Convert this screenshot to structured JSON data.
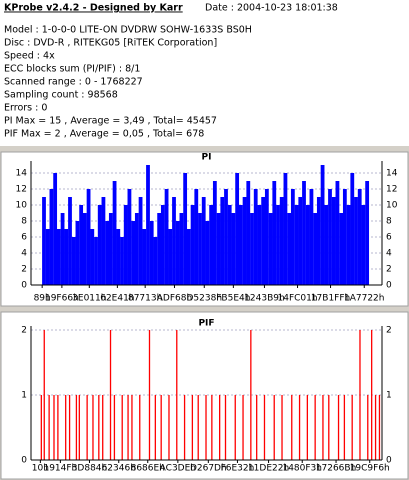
{
  "header": {
    "title": "KProbe v2.4.2 - Designed by Karr",
    "date": "Date : 2004-10-23 18:01:38",
    "lines": [
      "Model : 1-0-0-0 LITE-ON DVDRW SOHW-1633S BS0H",
      "Disc : DVD-R , RITEKG05 [RiTEK Corporation]",
      "Speed : 4x",
      "ECC blocks sum (PI/PIF) : 8/1",
      "Scanned range : 0 - 1768227",
      "Sampling count : 98568",
      "Errors : 0",
      "PI Max = 15 , Average = 3,49 , Total= 45457",
      "PIF Max = 2 , Average = 0,05 , Total= 678"
    ]
  },
  "chart_data": [
    {
      "type": "bar",
      "title": "PI",
      "color": "#0000ff",
      "xlim": [
        -60000,
        1830000
      ],
      "ylim": [
        0,
        15
      ],
      "yticks": [
        0,
        2,
        4,
        6,
        8,
        10,
        12,
        14
      ],
      "grid": true,
      "xticks": [
        {
          "value": 137,
          "label": "89h"
        },
        {
          "value": 106342,
          "label": "19F66h"
        },
        {
          "value": 253969,
          "label": "3E011h"
        },
        {
          "value": 405057,
          "label": "62E41h"
        },
        {
          "value": 554771,
          "label": "87713h"
        },
        {
          "value": 712552,
          "label": "ADF68h"
        },
        {
          "value": 873016,
          "label": "D5238h"
        },
        {
          "value": 1029604,
          "label": "FB5E4h"
        },
        {
          "value": 1196985,
          "label": "1243B9h"
        },
        {
          "value": 1375233,
          "label": "14FC01h"
        },
        {
          "value": 1552895,
          "label": "17B1FFh"
        },
        {
          "value": 1734434,
          "label": "1A7722h"
        }
      ],
      "x": [
        10000,
        30000,
        50000,
        70000,
        90000,
        110000,
        130000,
        150000,
        170000,
        190000,
        210000,
        230000,
        250000,
        270000,
        290000,
        310000,
        330000,
        350000,
        370000,
        390000,
        410000,
        430000,
        450000,
        470000,
        490000,
        510000,
        530000,
        550000,
        570000,
        590000,
        610000,
        630000,
        650000,
        670000,
        690000,
        710000,
        730000,
        750000,
        770000,
        790000,
        810000,
        830000,
        850000,
        870000,
        890000,
        910000,
        930000,
        950000,
        970000,
        990000,
        1010000,
        1030000,
        1050000,
        1070000,
        1090000,
        1110000,
        1130000,
        1150000,
        1170000,
        1190000,
        1210000,
        1230000,
        1250000,
        1270000,
        1290000,
        1310000,
        1330000,
        1350000,
        1370000,
        1390000,
        1410000,
        1430000,
        1450000,
        1470000,
        1490000,
        1510000,
        1530000,
        1550000,
        1570000,
        1590000,
        1610000,
        1630000,
        1650000,
        1670000,
        1690000,
        1710000,
        1730000,
        1750000
      ],
      "values": [
        11,
        7,
        12,
        14,
        7,
        9,
        7,
        11,
        6,
        8,
        10,
        9,
        12,
        7,
        6,
        10,
        11,
        8,
        9,
        13,
        7,
        6,
        10,
        12,
        8,
        9,
        11,
        7,
        15,
        8,
        6,
        9,
        10,
        12,
        7,
        11,
        8,
        9,
        14,
        7,
        10,
        12,
        9,
        11,
        8,
        10,
        13,
        9,
        11,
        12,
        10,
        9,
        14,
        10,
        11,
        13,
        9,
        12,
        10,
        11,
        12,
        9,
        13,
        10,
        11,
        14,
        9,
        12,
        10,
        11,
        13,
        10,
        12,
        9,
        11,
        15,
        10,
        12,
        11,
        13,
        9,
        12,
        10,
        14,
        11,
        12,
        10,
        13
      ]
    },
    {
      "type": "bar",
      "title": "PIF",
      "color": "#ff0000",
      "xlim": [
        -48000,
        1753000
      ],
      "ylim": [
        0,
        2
      ],
      "yticks": [
        0,
        1,
        2
      ],
      "grid": true,
      "xticks": [
        {
          "value": 16,
          "label": "10h"
        },
        {
          "value": 102735,
          "label": "1914Fh"
        },
        {
          "value": 252036,
          "label": "3D884h"
        },
        {
          "value": 402246,
          "label": "62346h"
        },
        {
          "value": 551022,
          "label": "8686Eh"
        },
        {
          "value": 705502,
          "label": "AC3DEh"
        },
        {
          "value": 861821,
          "label": "D267Dh"
        },
        {
          "value": 1011250,
          "label": "F6E32h"
        },
        {
          "value": 1170978,
          "label": "11DE22h"
        },
        {
          "value": 1343731,
          "label": "1480F3h"
        },
        {
          "value": 1517163,
          "label": "17266Bh"
        },
        {
          "value": 1690102,
          "label": "19C9F6h"
        }
      ],
      "x": [
        5000,
        20000,
        45000,
        70000,
        90000,
        130000,
        150000,
        185000,
        200000,
        240000,
        270000,
        300000,
        320000,
        360000,
        380000,
        420000,
        450000,
        470000,
        510000,
        560000,
        590000,
        620000,
        660000,
        700000,
        740000,
        780000,
        810000,
        850000,
        880000,
        920000,
        950000,
        1000000,
        1040000,
        1080000,
        1110000,
        1150000,
        1200000,
        1240000,
        1290000,
        1330000,
        1370000,
        1410000,
        1450000,
        1480000,
        1530000,
        1560000,
        1600000,
        1640000,
        1680000,
        1700000,
        1720000,
        1740000
      ],
      "values": [
        1,
        2,
        1,
        1,
        1,
        1,
        1,
        1,
        1,
        1,
        1,
        1,
        1,
        2,
        1,
        1,
        1,
        1,
        1,
        2,
        1,
        1,
        1,
        2,
        1,
        1,
        1,
        1,
        1,
        1,
        1,
        1,
        1,
        2,
        1,
        1,
        1,
        1,
        1,
        1,
        1,
        1,
        1,
        1,
        1,
        1,
        1,
        2,
        1,
        2,
        1,
        1
      ]
    }
  ]
}
